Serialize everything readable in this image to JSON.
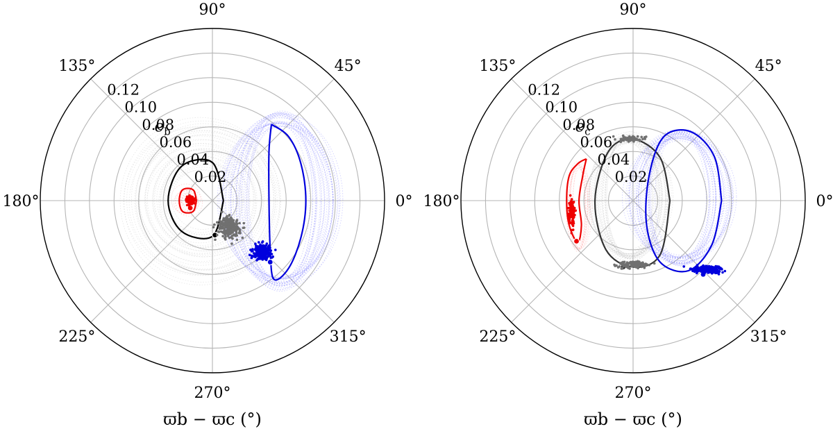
{
  "chart_data": [
    {
      "type": "scatter",
      "projection": "polar",
      "xlabel": "ϖb − ϖc (°)",
      "radial_label": {
        "symbol": "e",
        "subscript": "b"
      },
      "angle_ticks": [
        0,
        45,
        90,
        135,
        180,
        225,
        270,
        315
      ],
      "angle_tick_labels": [
        "0°",
        "45°",
        "90°",
        "135°",
        "180°",
        "225°",
        "270°",
        "315°"
      ],
      "r_ticks": [
        0.02,
        0.04,
        0.06,
        0.08,
        0.1,
        0.12
      ],
      "r_tick_labels": [
        "0.02",
        "0.04",
        "0.06",
        "0.08",
        "0.10",
        "0.12"
      ],
      "rlim": [
        0,
        0.14
      ],
      "grid": true,
      "series": [
        {
          "color": "#b0b0b0",
          "style": "faint-trajectories",
          "center": [
            -0.008,
            0.0
          ],
          "rx_range": [
            0.025,
            0.065
          ],
          "count": 32
        },
        {
          "color": "#5a5aff",
          "style": "faint-trajectories",
          "center": [
            0.055,
            0.0
          ],
          "rx_range": [
            0.025,
            0.05
          ],
          "ry": 0.072,
          "count": 28
        },
        {
          "color": "#ff7070",
          "style": "faint-trajectories",
          "center": [
            -0.02,
            0.0
          ],
          "rx_range": [
            0.003,
            0.012
          ],
          "count": 10
        },
        {
          "color": "#000000",
          "style": "trajectory",
          "points": [
            [
              0.009,
              0.0
            ],
            [
              0.0,
              0.031
            ],
            [
              -0.025,
              0.028
            ],
            [
              -0.036,
              0.0
            ],
            [
              -0.025,
              -0.025
            ],
            [
              0.0,
              -0.029
            ],
            [
              0.009,
              0.0
            ]
          ],
          "start": [
            0.002,
            -0.028
          ]
        },
        {
          "color": "#0000dd",
          "style": "trajectory",
          "points": [
            [
              0.048,
              0.062
            ],
            [
              0.062,
              0.052
            ],
            [
              0.072,
              0.03
            ],
            [
              0.076,
              0.0
            ],
            [
              0.072,
              -0.03
            ],
            [
              0.062,
              -0.055
            ],
            [
              0.05,
              -0.064
            ],
            [
              0.047,
              -0.04
            ],
            [
              0.046,
              0.0
            ],
            [
              0.046,
              0.04
            ],
            [
              0.048,
              0.062
            ]
          ],
          "start": [
            0.047,
            -0.05
          ]
        },
        {
          "color": "#ee0000",
          "style": "trajectory",
          "points": [
            [
              -0.013,
              0.0
            ],
            [
              -0.015,
              0.008
            ],
            [
              -0.02,
              0.01
            ],
            [
              -0.025,
              0.008
            ],
            [
              -0.027,
              0.0
            ],
            [
              -0.025,
              -0.008
            ],
            [
              -0.02,
              -0.01
            ],
            [
              -0.015,
              -0.008
            ],
            [
              -0.013,
              0.0
            ]
          ],
          "start": [
            -0.018,
            -0.006
          ]
        },
        {
          "color": "#707070",
          "style": "points",
          "cluster": {
            "center": [
              0.014,
              -0.022
            ],
            "spread": [
              0.014,
              0.013
            ],
            "count": 230
          }
        },
        {
          "color": "#0000dd",
          "style": "points",
          "cluster": {
            "center": [
              0.04,
              -0.042
            ],
            "spread": [
              0.011,
              0.009
            ],
            "count": 230
          }
        },
        {
          "color": "#ee0000",
          "style": "points",
          "cluster": {
            "center": [
              -0.018,
              0.0
            ],
            "spread": [
              0.005,
              0.005
            ],
            "count": 80
          }
        }
      ]
    },
    {
      "type": "scatter",
      "projection": "polar",
      "xlabel": "ϖb − ϖc (°)",
      "radial_label": {
        "symbol": "e",
        "subscript": "c"
      },
      "angle_ticks": [
        0,
        45,
        90,
        135,
        180,
        225,
        270,
        315
      ],
      "angle_tick_labels": [
        "0°",
        "45°",
        "90°",
        "135°",
        "180°",
        "225°",
        "270°",
        "315°"
      ],
      "r_ticks": [
        0.02,
        0.04,
        0.06,
        0.08,
        0.1,
        0.12
      ],
      "r_tick_labels": [
        "0.02",
        "0.04",
        "0.06",
        "0.08",
        "0.10",
        "0.12"
      ],
      "rlim": [
        0,
        0.14
      ],
      "grid": true,
      "series": [
        {
          "color": "#b0b0b0",
          "style": "faint-trajectories",
          "center": [
            -0.003,
            0.003
          ],
          "rx_range": [
            0.018,
            0.034
          ],
          "ry": 0.052,
          "count": 28
        },
        {
          "color": "#5a5aff",
          "style": "faint-trajectories",
          "center": [
            0.038,
            0.002
          ],
          "rx_range": [
            0.022,
            0.045
          ],
          "ry": 0.055,
          "count": 28
        },
        {
          "color": "#ff7070",
          "style": "faint-trajectories",
          "center": [
            -0.045,
            -0.005
          ],
          "rx_range": [
            0.005,
            0.01
          ],
          "ry": 0.036,
          "count": 10
        },
        {
          "color": "#333333",
          "style": "trajectory",
          "points": [
            [
              0.03,
              0.0
            ],
            [
              0.022,
              0.035
            ],
            [
              0.0,
              0.05
            ],
            [
              -0.02,
              0.04
            ],
            [
              -0.031,
              0.0
            ],
            [
              -0.022,
              -0.04
            ],
            [
              0.0,
              -0.054
            ],
            [
              0.022,
              -0.044
            ],
            [
              0.03,
              0.0
            ]
          ],
          "start": [
            -0.008,
            -0.054
          ]
        },
        {
          "color": "#0000dd",
          "style": "trajectory",
          "points": [
            [
              0.072,
              0.0
            ],
            [
              0.066,
              0.036
            ],
            [
              0.047,
              0.056
            ],
            [
              0.025,
              0.052
            ],
            [
              0.013,
              0.02
            ],
            [
              0.011,
              -0.02
            ],
            [
              0.022,
              -0.05
            ],
            [
              0.045,
              -0.057
            ],
            [
              0.064,
              -0.036
            ],
            [
              0.072,
              0.0
            ]
          ],
          "start": [
            0.057,
            -0.06
          ]
        },
        {
          "color": "#ee0000",
          "style": "trajectory",
          "points": [
            [
              -0.038,
              0.034
            ],
            [
              -0.045,
              0.03
            ],
            [
              -0.052,
              0.02
            ],
            [
              -0.054,
              0.0
            ],
            [
              -0.052,
              -0.02
            ],
            [
              -0.045,
              -0.034
            ],
            [
              -0.042,
              -0.02
            ],
            [
              -0.044,
              0.0
            ],
            [
              -0.041,
              0.02
            ],
            [
              -0.038,
              0.034
            ]
          ],
          "start": [
            -0.046,
            -0.033
          ]
        },
        {
          "color": "#707070",
          "style": "points",
          "cluster": {
            "center": [
              0.0,
              -0.052
            ],
            "spread": [
              0.02,
              0.004
            ],
            "count": 150
          }
        },
        {
          "color": "#707070",
          "style": "points",
          "cluster": {
            "center": [
              -0.002,
              0.05
            ],
            "spread": [
              0.016,
              0.003
            ],
            "count": 80
          }
        },
        {
          "color": "#0000dd",
          "style": "points",
          "cluster": {
            "center": [
              0.06,
              -0.056
            ],
            "spread": [
              0.018,
              0.004
            ],
            "count": 220
          }
        },
        {
          "color": "#ee0000",
          "style": "points",
          "cluster": {
            "center": [
              -0.05,
              -0.01
            ],
            "spread": [
              0.004,
              0.02
            ],
            "count": 90
          }
        }
      ]
    }
  ]
}
